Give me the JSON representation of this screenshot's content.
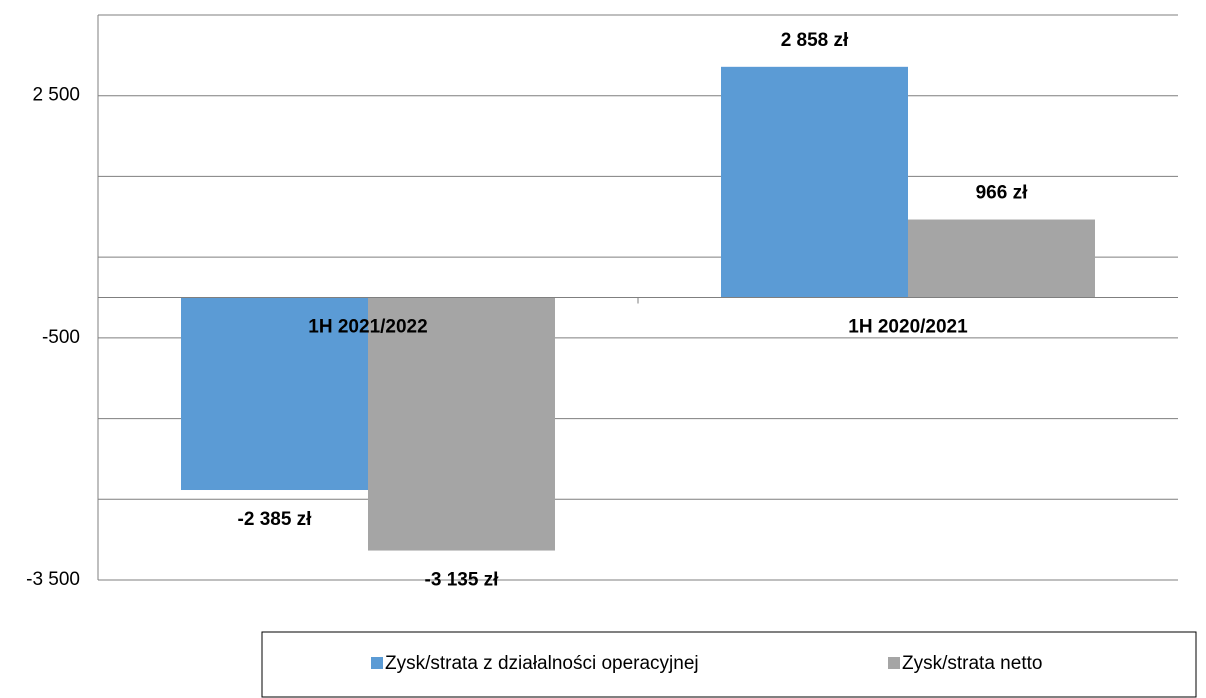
{
  "chart_data": {
    "type": "bar",
    "categories": [
      "1H 2021/2022",
      "1H 2020/2021"
    ],
    "series": [
      {
        "name": "Zysk/strata z działalności operacyjnej",
        "color": "#5b9bd5",
        "values": [
          -2385,
          2858
        ],
        "value_labels": [
          "-2 385 zł",
          "2 858 zł"
        ]
      },
      {
        "name": "Zysk/strata netto",
        "color": "#a5a5a5",
        "values": [
          -3135,
          966
        ],
        "value_labels": [
          "-3 135 zł",
          "966 zł"
        ]
      }
    ],
    "ylim": [
      -3500,
      3500
    ],
    "yticks": [
      {
        "value": -3500,
        "label": "-3 500"
      },
      -500,
      {
        "value": 2500,
        "label": "2 500"
      }
    ],
    "minor_yticks": [
      -2500,
      -1500,
      500,
      1500,
      3500
    ],
    "grid": true
  }
}
